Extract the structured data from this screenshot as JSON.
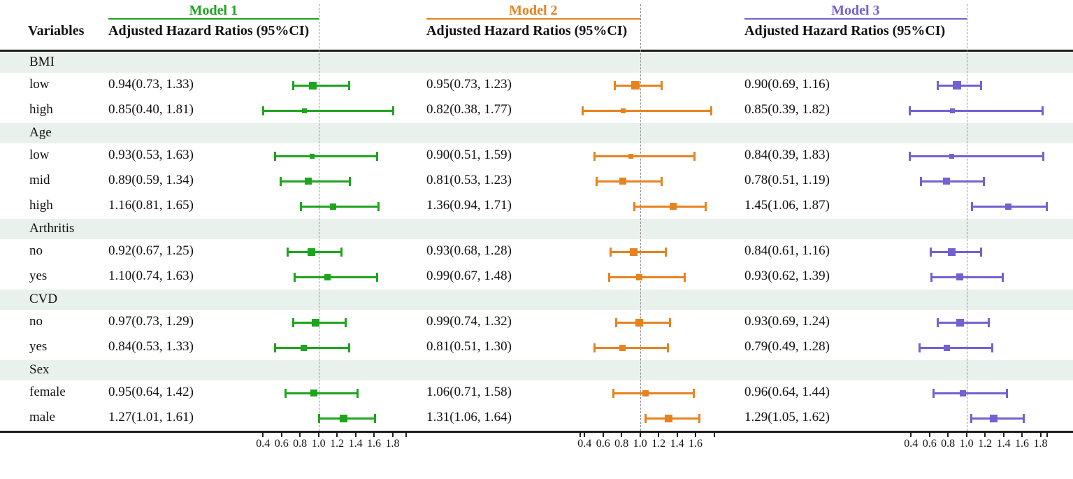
{
  "header": {
    "variables_label": "Variables",
    "models": [
      {
        "name": "Model 1",
        "subtitle": "Adjusted Hazard Ratios (95%CI)",
        "color": "#1ea41e"
      },
      {
        "name": "Model 2",
        "subtitle": "Adjusted Hazard Ratios (95%CI)",
        "color": "#e8821e"
      },
      {
        "name": "Model 3",
        "subtitle": "Adjusted Hazard Ratios (95%CI)",
        "color": "#7361d1"
      }
    ]
  },
  "chart_data": {
    "type": "forest",
    "title": "",
    "reference_value": 1.0,
    "axis_range": [
      0.3,
      2.0
    ],
    "grid": false,
    "panels": [
      {
        "model": "Model 1",
        "color": "#1ea41e",
        "ticks": [
          {
            "v": 0.4,
            "l": "0.4"
          },
          {
            "v": 0.6,
            "l": "0.6"
          },
          {
            "v": 0.8,
            "l": "0.8"
          },
          {
            "v": 1.0,
            "l": "1.0"
          },
          {
            "v": 1.2,
            "l": "1.2"
          },
          {
            "v": 1.4,
            "l": "1.4"
          },
          {
            "v": 1.6,
            "l": "1.6"
          },
          {
            "v": 1.8,
            "l": "1.8"
          },
          {
            "v": 1.95,
            "l": ""
          }
        ]
      },
      {
        "model": "Model 2",
        "color": "#e8821e",
        "ticks": [
          {
            "v": 0.35,
            "l": ""
          },
          {
            "v": 0.4,
            "l": "0.4"
          },
          {
            "v": 0.6,
            "l": "0.6"
          },
          {
            "v": 0.8,
            "l": "0.8"
          },
          {
            "v": 1.0,
            "l": "1.0"
          },
          {
            "v": 1.2,
            "l": "1.2"
          },
          {
            "v": 1.4,
            "l": "1.4"
          },
          {
            "v": 1.6,
            "l": "1.6"
          },
          {
            "v": 1.8,
            "l": ""
          }
        ]
      },
      {
        "model": "Model 3",
        "color": "#7361d1",
        "ticks": [
          {
            "v": 0.4,
            "l": "0.4"
          },
          {
            "v": 0.6,
            "l": "0.6"
          },
          {
            "v": 0.8,
            "l": "0.8"
          },
          {
            "v": 1.0,
            "l": "1.0"
          },
          {
            "v": 1.2,
            "l": "1.2"
          },
          {
            "v": 1.4,
            "l": "1.4"
          },
          {
            "v": 1.6,
            "l": "1.6"
          },
          {
            "v": 1.8,
            "l": "1.8"
          },
          {
            "v": 1.87,
            "l": ""
          }
        ]
      }
    ],
    "groups": [
      {
        "label": "BMI",
        "rows": [
          {
            "label": "low",
            "est": [
              {
                "text": "0.94(0.73, 1.33)",
                "hr": 0.94,
                "lo": 0.73,
                "hi": 1.33
              },
              {
                "text": "0.95(0.73, 1.23)",
                "hr": 0.95,
                "lo": 0.73,
                "hi": 1.23
              },
              {
                "text": "0.90(0.69, 1.16)",
                "hr": 0.9,
                "lo": 0.69,
                "hi": 1.16
              }
            ]
          },
          {
            "label": "high",
            "est": [
              {
                "text": "0.85(0.40, 1.81)",
                "hr": 0.85,
                "lo": 0.4,
                "hi": 1.81
              },
              {
                "text": "0.82(0.38, 1.77)",
                "hr": 0.82,
                "lo": 0.38,
                "hi": 1.77
              },
              {
                "text": "0.85(0.39, 1.82)",
                "hr": 0.85,
                "lo": 0.39,
                "hi": 1.82
              }
            ]
          }
        ]
      },
      {
        "label": "Age",
        "rows": [
          {
            "label": "low",
            "est": [
              {
                "text": "0.93(0.53, 1.63)",
                "hr": 0.93,
                "lo": 0.53,
                "hi": 1.63
              },
              {
                "text": "0.90(0.51, 1.59)",
                "hr": 0.9,
                "lo": 0.51,
                "hi": 1.59
              },
              {
                "text": "0.84(0.39, 1.83)",
                "hr": 0.84,
                "lo": 0.39,
                "hi": 1.83
              }
            ]
          },
          {
            "label": "mid",
            "est": [
              {
                "text": "0.89(0.59, 1.34)",
                "hr": 0.89,
                "lo": 0.59,
                "hi": 1.34
              },
              {
                "text": "0.81(0.53, 1.23)",
                "hr": 0.81,
                "lo": 0.53,
                "hi": 1.23
              },
              {
                "text": "0.78(0.51, 1.19)",
                "hr": 0.78,
                "lo": 0.51,
                "hi": 1.19
              }
            ]
          },
          {
            "label": "high",
            "est": [
              {
                "text": "1.16(0.81, 1.65)",
                "hr": 1.16,
                "lo": 0.81,
                "hi": 1.65
              },
              {
                "text": "1.36(0.94, 1.71)",
                "hr": 1.36,
                "lo": 0.94,
                "hi": 1.71
              },
              {
                "text": "1.45(1.06, 1.87)",
                "hr": 1.45,
                "lo": 1.06,
                "hi": 1.87
              }
            ]
          }
        ]
      },
      {
        "label": "Arthritis",
        "rows": [
          {
            "label": "no",
            "est": [
              {
                "text": "0.92(0.67, 1.25)",
                "hr": 0.92,
                "lo": 0.67,
                "hi": 1.25
              },
              {
                "text": "0.93(0.68, 1.28)",
                "hr": 0.93,
                "lo": 0.68,
                "hi": 1.28
              },
              {
                "text": "0.84(0.61, 1.16)",
                "hr": 0.84,
                "lo": 0.61,
                "hi": 1.16
              }
            ]
          },
          {
            "label": "yes",
            "est": [
              {
                "text": "1.10(0.74, 1.63)",
                "hr": 1.1,
                "lo": 0.74,
                "hi": 1.63
              },
              {
                "text": "0.99(0.67, 1.48)",
                "hr": 0.99,
                "lo": 0.67,
                "hi": 1.48
              },
              {
                "text": "0.93(0.62, 1.39)",
                "hr": 0.93,
                "lo": 0.62,
                "hi": 1.39
              }
            ]
          }
        ]
      },
      {
        "label": "CVD",
        "rows": [
          {
            "label": "no",
            "est": [
              {
                "text": "0.97(0.73, 1.29)",
                "hr": 0.97,
                "lo": 0.73,
                "hi": 1.29
              },
              {
                "text": "0.99(0.74, 1.32)",
                "hr": 0.99,
                "lo": 0.74,
                "hi": 1.32
              },
              {
                "text": "0.93(0.69, 1.24)",
                "hr": 0.93,
                "lo": 0.69,
                "hi": 1.24
              }
            ]
          },
          {
            "label": "yes",
            "est": [
              {
                "text": "0.84(0.53, 1.33)",
                "hr": 0.84,
                "lo": 0.53,
                "hi": 1.33
              },
              {
                "text": "0.81(0.51, 1.30)",
                "hr": 0.81,
                "lo": 0.51,
                "hi": 1.3
              },
              {
                "text": "0.79(0.49, 1.28)",
                "hr": 0.79,
                "lo": 0.49,
                "hi": 1.28
              }
            ]
          }
        ]
      },
      {
        "label": "Sex",
        "rows": [
          {
            "label": "female",
            "est": [
              {
                "text": "0.95(0.64, 1.42)",
                "hr": 0.95,
                "lo": 0.64,
                "hi": 1.42
              },
              {
                "text": "1.06(0.71, 1.58)",
                "hr": 1.06,
                "lo": 0.71,
                "hi": 1.58
              },
              {
                "text": "0.96(0.64, 1.44)",
                "hr": 0.96,
                "lo": 0.64,
                "hi": 1.44
              }
            ]
          },
          {
            "label": "male",
            "est": [
              {
                "text": "1.27(1.01, 1.61)",
                "hr": 1.27,
                "lo": 1.01,
                "hi": 1.61
              },
              {
                "text": "1.31(1.06, 1.64)",
                "hr": 1.31,
                "lo": 1.06,
                "hi": 1.64
              },
              {
                "text": "1.29(1.05, 1.62)",
                "hr": 1.29,
                "lo": 1.05,
                "hi": 1.62
              }
            ]
          }
        ]
      }
    ],
    "colors": {
      "band_background": "#e9f1ed",
      "rule": "#1c1c1c",
      "reference_line": "#8f8f8f"
    }
  }
}
